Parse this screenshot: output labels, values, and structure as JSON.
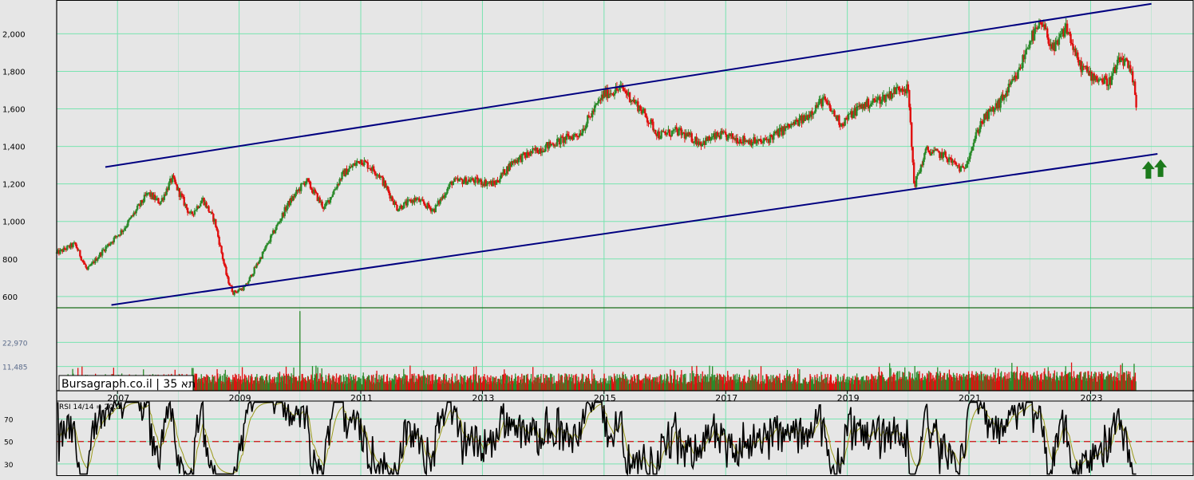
{
  "chart_data": {
    "type": "candlestick",
    "watermark": "Bursagraph.co.il | תא 35",
    "x_ticks": [
      "2007",
      "2009",
      "2011",
      "2013",
      "2015",
      "2017",
      "2019",
      "2021",
      "2023"
    ],
    "price_axis": {
      "ticks": [
        "2,000",
        "1,800",
        "1,600",
        "1,400",
        "1,200",
        "1,000",
        "800",
        "600"
      ],
      "range": [
        540,
        2180
      ]
    },
    "volume_axis": {
      "ticks": [
        "22,970",
        "11,485"
      ],
      "range": [
        0,
        39000
      ]
    },
    "rsi_panel": {
      "label": "RSI 14/14 = 20.0",
      "ticks": [
        "70",
        "50",
        "30"
      ],
      "reference_level": 50,
      "current": 20.0
    },
    "price_path": [
      [
        "2006.0",
        830
      ],
      [
        "2006.3",
        880
      ],
      [
        "2006.5",
        740
      ],
      [
        "2006.8",
        860
      ],
      [
        "2007.1",
        960
      ],
      [
        "2007.5",
        1150
      ],
      [
        "2007.7",
        1100
      ],
      [
        "2007.9",
        1230
      ],
      [
        "2008.2",
        1030
      ],
      [
        "2008.4",
        1120
      ],
      [
        "2008.6",
        1000
      ],
      [
        "2008.8",
        700
      ],
      [
        "2008.9",
        620
      ],
      [
        "2009.1",
        650
      ],
      [
        "2009.5",
        900
      ],
      [
        "2009.8",
        1090
      ],
      [
        "2010.1",
        1220
      ],
      [
        "2010.4",
        1070
      ],
      [
        "2010.7",
        1250
      ],
      [
        "2011.0",
        1330
      ],
      [
        "2011.3",
        1250
      ],
      [
        "2011.6",
        1070
      ],
      [
        "2011.9",
        1120
      ],
      [
        "2012.2",
        1060
      ],
      [
        "2012.5",
        1210
      ],
      [
        "2012.8",
        1220
      ],
      [
        "2013.2",
        1200
      ],
      [
        "2013.5",
        1320
      ],
      [
        "2013.9",
        1380
      ],
      [
        "2014.2",
        1420
      ],
      [
        "2014.6",
        1470
      ],
      [
        "2015.0",
        1680
      ],
      [
        "2015.3",
        1710
      ],
      [
        "2015.6",
        1600
      ],
      [
        "2015.9",
        1460
      ],
      [
        "2016.2",
        1480
      ],
      [
        "2016.6",
        1420
      ],
      [
        "2016.9",
        1460
      ],
      [
        "2017.2",
        1440
      ],
      [
        "2017.6",
        1420
      ],
      [
        "2017.9",
        1480
      ],
      [
        "2018.3",
        1550
      ],
      [
        "2018.6",
        1650
      ],
      [
        "2018.9",
        1520
      ],
      [
        "2019.2",
        1610
      ],
      [
        "2019.6",
        1660
      ],
      [
        "2019.9",
        1720
      ],
      [
        "2020.0",
        1700
      ],
      [
        "2020.1",
        1190
      ],
      [
        "2020.3",
        1380
      ],
      [
        "2020.6",
        1350
      ],
      [
        "2020.9",
        1270
      ],
      [
        "2021.2",
        1530
      ],
      [
        "2021.5",
        1630
      ],
      [
        "2021.8",
        1780
      ],
      [
        "2022.0",
        1970
      ],
      [
        "2022.2",
        2050
      ],
      [
        "2022.4",
        1910
      ],
      [
        "2022.6",
        2040
      ],
      [
        "2022.8",
        1840
      ],
      [
        "2023.0",
        1780
      ],
      [
        "2023.3",
        1740
      ],
      [
        "2023.5",
        1870
      ],
      [
        "2023.6",
        1830
      ],
      [
        "2023.7",
        1750
      ],
      [
        "2023.75",
        1610
      ]
    ],
    "trend_channel": [
      {
        "name": "upper",
        "from": [
          "2006.8",
          1290
        ],
        "to": [
          "2024.0",
          2160
        ]
      },
      {
        "name": "lower",
        "from": [
          "2006.9",
          555
        ],
        "to": [
          "2024.1",
          1360
        ]
      }
    ],
    "markers": [
      {
        "type": "up-arrow",
        "at": [
          "2023.95",
          1270
        ]
      },
      {
        "type": "up-arrow",
        "at": [
          "2024.15",
          1280
        ]
      }
    ],
    "colors": {
      "background": "#e6e6e6",
      "grid": "#78e3b0",
      "up": "#2b8a2b",
      "down": "#e01010",
      "channel": "#000080",
      "rsi": "#000000",
      "rsi_signal": "#9a9a1a",
      "rsi_midline": "#d01010",
      "arrow": "#1b7a1b"
    }
  }
}
